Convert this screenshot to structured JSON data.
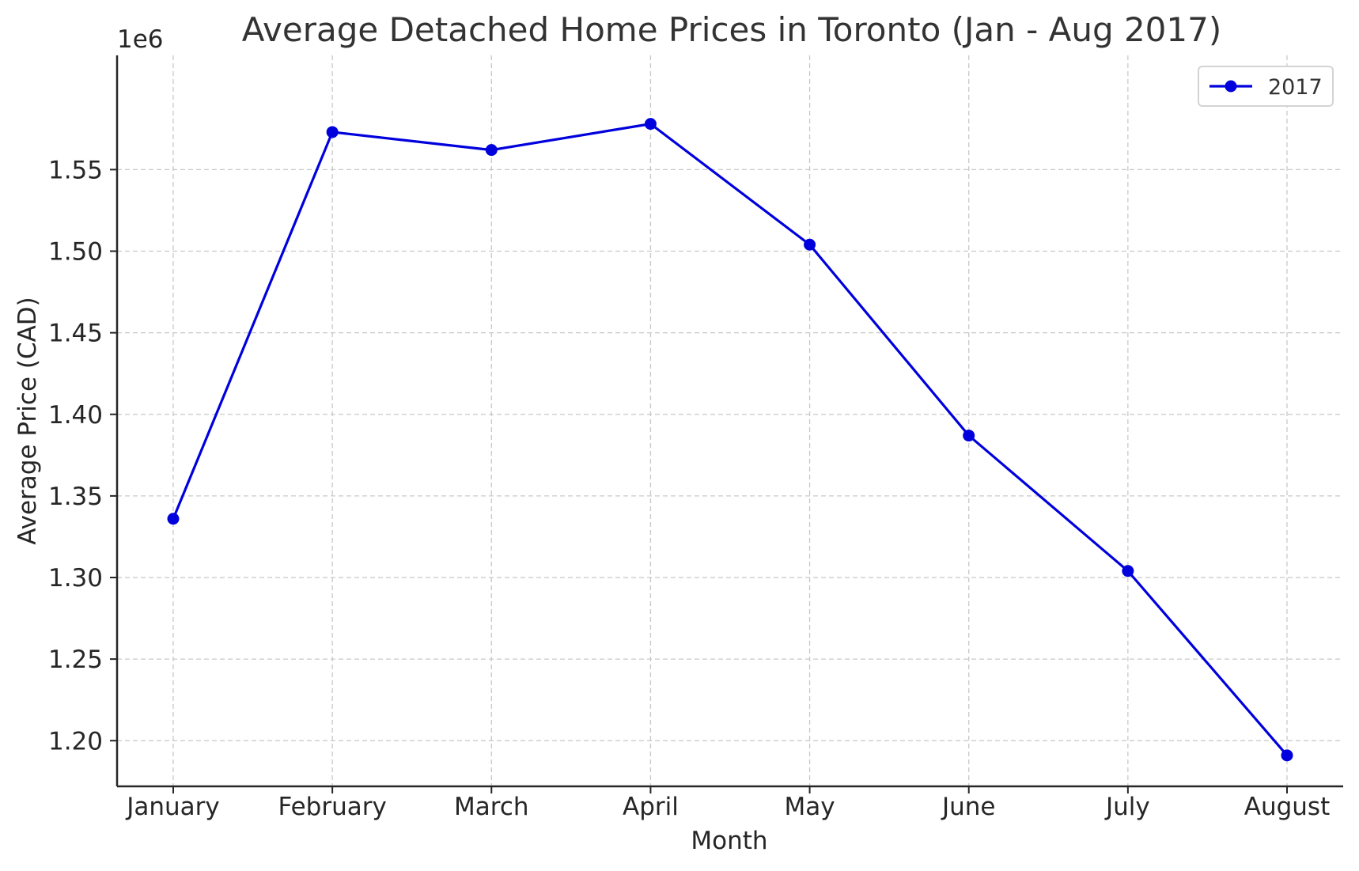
{
  "chart_data": {
    "type": "line",
    "title": "Average Detached Home Prices in Toronto (Jan - Aug 2017)",
    "xlabel": "Month",
    "ylabel": "Average Price (CAD)",
    "y_offset_label": "1e6",
    "categories": [
      "January",
      "February",
      "March",
      "April",
      "May",
      "June",
      "July",
      "August"
    ],
    "series": [
      {
        "name": "2017",
        "color": "#0000dd",
        "marker": "circle",
        "values": [
          1336000,
          1573000,
          1562000,
          1578000,
          1504000,
          1387000,
          1304000,
          1191000
        ]
      }
    ],
    "ylim": [
      1172000,
      1620000
    ],
    "yticks": [
      1200000,
      1250000,
      1300000,
      1350000,
      1400000,
      1450000,
      1500000,
      1550000
    ],
    "ytick_labels": [
      "1.20",
      "1.25",
      "1.30",
      "1.35",
      "1.40",
      "1.45",
      "1.50",
      "1.55"
    ],
    "grid": true,
    "legend_position": "top-right"
  }
}
